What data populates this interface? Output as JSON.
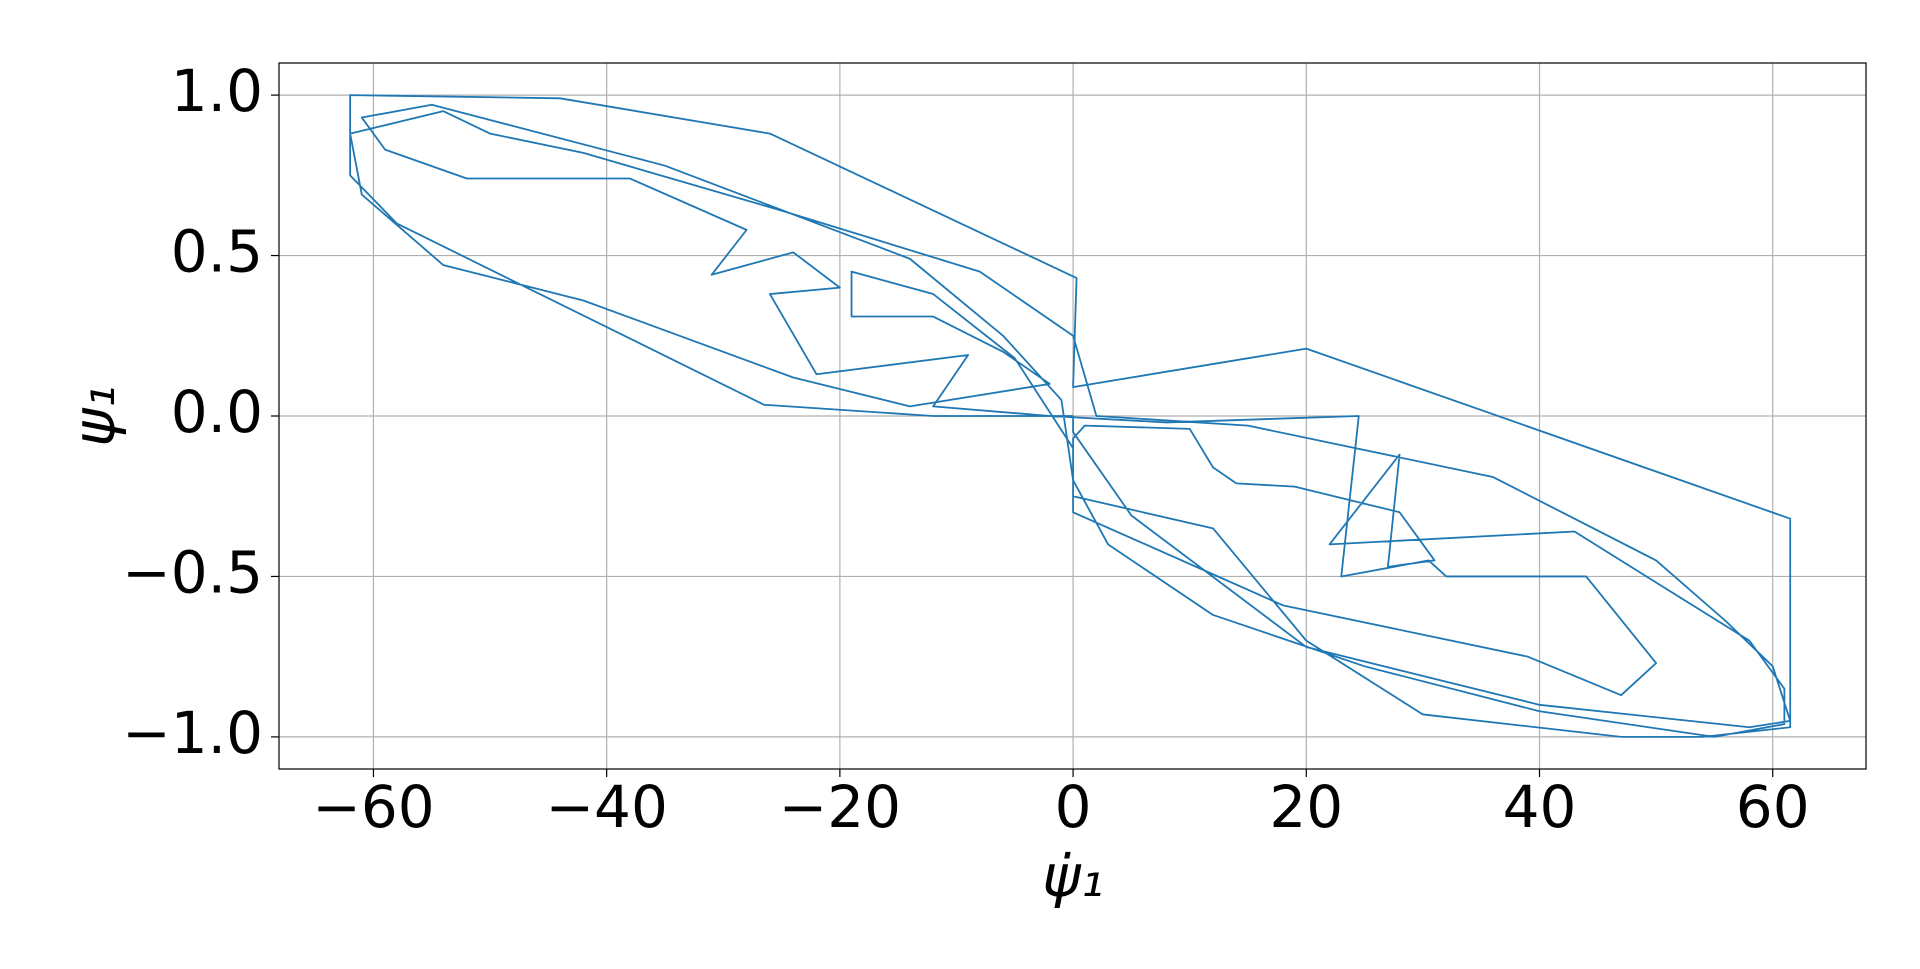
{
  "chart_data": {
    "type": "line",
    "x_label": "ψ̇₁",
    "y_label": "ψ₁",
    "x": [
      0,
      -12,
      -26.5,
      -58,
      -62,
      -62,
      -44,
      -26,
      0.3,
      0,
      20,
      61.5,
      61.5,
      54,
      47,
      30,
      20,
      12,
      0,
      0,
      1,
      10,
      12,
      14,
      19,
      28,
      31,
      27,
      28,
      22,
      43,
      58,
      61,
      61,
      55,
      40,
      25,
      12,
      3,
      0,
      -1,
      -6,
      -14,
      -35,
      -55,
      -61,
      -59,
      -52,
      -38,
      -28,
      -31,
      -24,
      -20,
      -26,
      -22,
      -9,
      -12,
      -2,
      8,
      24.5,
      23,
      30.5,
      32,
      44,
      50,
      47,
      39,
      18,
      0,
      0,
      -5,
      -12,
      -19,
      -19,
      -12,
      -6,
      -2,
      -14,
      -24,
      -42,
      -54,
      -61,
      -62,
      -54,
      -50,
      -42,
      -25,
      -8,
      0,
      2,
      15,
      36,
      50,
      56,
      60,
      61.5,
      58,
      40,
      20,
      5,
      0,
      0
    ],
    "series": [
      {
        "color": "#1f77b4",
        "values": [
          0,
          0,
          0.035,
          0.6,
          0.75,
          1,
          0.99,
          0.88,
          0.43,
          0.09,
          0.21,
          -0.32,
          -0.97,
          -1,
          -1,
          -0.93,
          -0.7,
          -0.35,
          -0.25,
          -0.07,
          -0.03,
          -0.04,
          -0.16,
          -0.21,
          -0.22,
          -0.3,
          -0.45,
          -0.47,
          -0.12,
          -0.4,
          -0.36,
          -0.7,
          -0.85,
          -0.96,
          -1,
          -0.92,
          -0.78,
          -0.62,
          -0.4,
          -0.2,
          0.05,
          0.25,
          0.49,
          0.78,
          0.97,
          0.93,
          0.83,
          0.74,
          0.74,
          0.58,
          0.44,
          0.51,
          0.4,
          0.38,
          0.13,
          0.19,
          0.03,
          0,
          -0.02,
          0,
          -0.5,
          -0.45,
          -0.5,
          -0.5,
          -0.77,
          -0.87,
          -0.75,
          -0.59,
          -0.3,
          -0.1,
          0.18,
          0.38,
          0.45,
          0.31,
          0.31,
          0.2,
          0.1,
          0.03,
          0.12,
          0.36,
          0.47,
          0.69,
          0.88,
          0.95,
          0.88,
          0.82,
          0.64,
          0.45,
          0.25,
          0,
          -0.03,
          -0.19,
          -0.45,
          -0.64,
          -0.78,
          -0.95,
          -0.97,
          -0.9,
          -0.72,
          -0.31,
          -0.05,
          0
        ]
      }
    ],
    "xlim": [
      -68.1,
      68
    ],
    "ylim": [
      -1.1,
      1.1
    ],
    "xticks": [
      {
        "value": -60,
        "label": "−60"
      },
      {
        "value": -40,
        "label": "−40"
      },
      {
        "value": -20,
        "label": "−20"
      },
      0,
      20,
      40,
      60
    ],
    "yticks": [
      {
        "value": -1,
        "label": "−1.0"
      },
      {
        "value": -0.5,
        "label": "−0.5"
      },
      {
        "value": 0,
        "label": "0.0"
      },
      0.5,
      {
        "value": 1,
        "label": "1.0"
      }
    ],
    "grid": true
  }
}
